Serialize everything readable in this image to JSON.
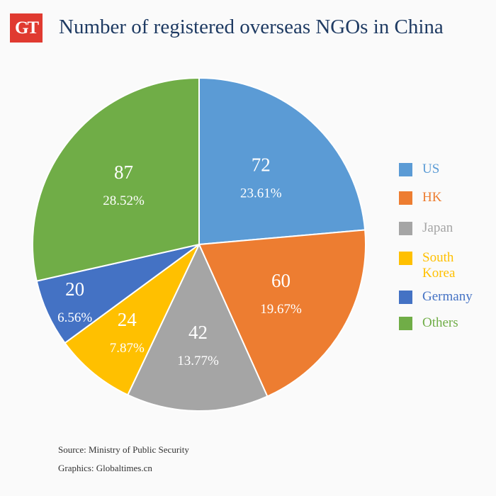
{
  "logo": "GT",
  "title": "Number of registered overseas NGOs in China",
  "source": "Source: Ministry of Public Security",
  "credit": "Graphics: Globaltimes.cn",
  "chart_data": {
    "type": "pie",
    "title": "Number of registered overseas NGOs in China",
    "start": "top, clockwise",
    "legend_position": "right",
    "slices": [
      {
        "label": "US",
        "value": 72,
        "percent": "23.61%",
        "color": "#5b9bd5"
      },
      {
        "label": "HK",
        "value": 60,
        "percent": "19.67%",
        "color": "#ed7d31"
      },
      {
        "label": "Japan",
        "value": 42,
        "percent": "13.77%",
        "color": "#a5a5a5"
      },
      {
        "label": "South Korea",
        "value": 24,
        "percent": "7.87%",
        "color": "#ffc000"
      },
      {
        "label": "Germany",
        "value": 20,
        "percent": "6.56%",
        "color": "#4472c4"
      },
      {
        "label": "Others",
        "value": 87,
        "percent": "28.52%",
        "color": "#70ad47"
      }
    ]
  }
}
